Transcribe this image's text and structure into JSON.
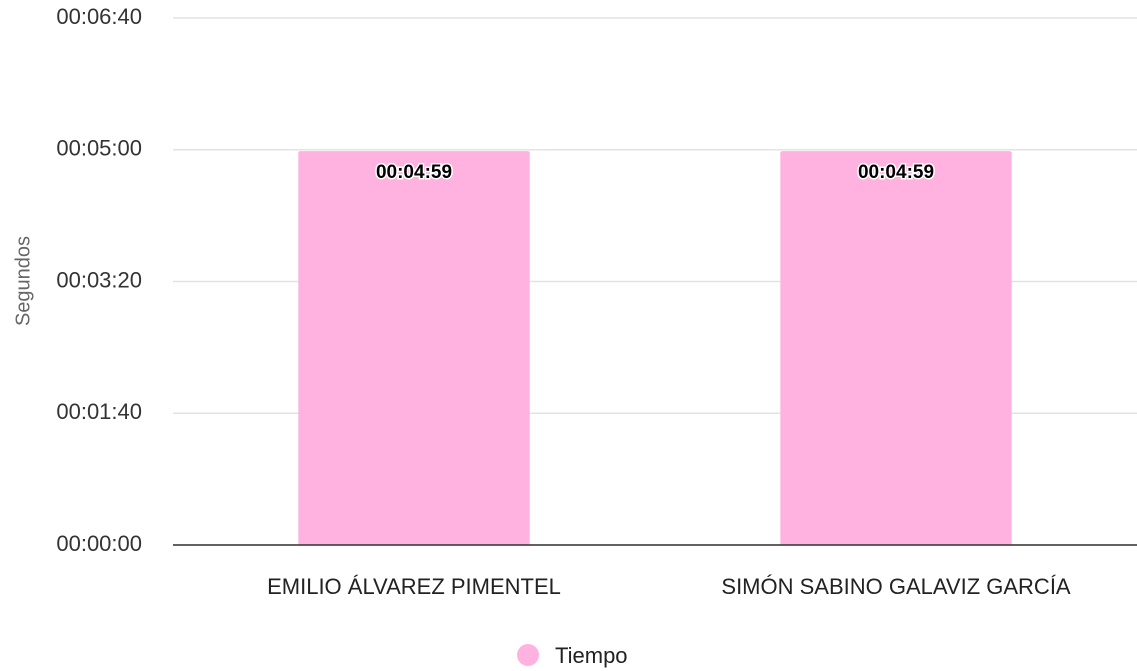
{
  "chart_data": {
    "type": "bar",
    "y_label": "Segundos",
    "categories": [
      "EMILIO ÁLVAREZ PIMENTEL",
      "SIMÓN SABINO GALAVIZ GARCÍA"
    ],
    "series": [
      {
        "name": "Tiempo",
        "color": "#ffb1e0",
        "values": [
          299,
          299
        ],
        "value_labels": [
          "00:04:59",
          "00:04:59"
        ]
      }
    ],
    "ylim": [
      0,
      400
    ],
    "yticks": [
      {
        "value": 0,
        "label": "00:00:00"
      },
      {
        "value": 100,
        "label": "00:01:40"
      },
      {
        "value": 200,
        "label": "00:03:20"
      },
      {
        "value": 300,
        "label": "00:05:00"
      },
      {
        "value": 400,
        "label": "00:06:40"
      }
    ],
    "grid": true,
    "legend": "bottom"
  }
}
